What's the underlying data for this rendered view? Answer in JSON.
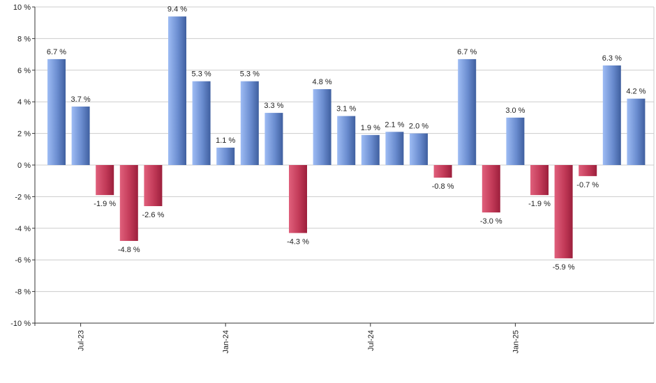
{
  "chart_data": {
    "type": "bar",
    "title": "",
    "xlabel": "",
    "ylabel": "",
    "ylim": [
      -10,
      10
    ],
    "yticks": [
      10,
      8,
      6,
      4,
      2,
      0,
      -2,
      -4,
      -6,
      -8,
      -10
    ],
    "ytick_labels": [
      "10 %",
      "8 %",
      "6 %",
      "4 %",
      "2 %",
      "0 %",
      "-2 %",
      "-4 %",
      "-6 %",
      "-8 %",
      "-10 %"
    ],
    "grid": true,
    "legend": "none",
    "values": [
      6.7,
      3.7,
      -1.9,
      -4.8,
      -2.6,
      9.4,
      5.3,
      1.1,
      5.3,
      3.3,
      -4.3,
      4.8,
      3.1,
      1.9,
      2.1,
      2.0,
      -0.8,
      6.7,
      -3.0,
      3.0,
      -1.9,
      -5.9,
      -0.7,
      6.3,
      4.2
    ],
    "data_labels": [
      "6.7 %",
      "3.7 %",
      "-1.9 %",
      "-4.8 %",
      "-2.6 %",
      "9.4 %",
      "5.3 %",
      "1.1 %",
      "5.3 %",
      "3.3 %",
      "-4.3 %",
      "4.8 %",
      "3.1 %",
      "1.9 %",
      "2.1 %",
      "2.0 %",
      "-0.8 %",
      "6.7 %",
      "-3.0 %",
      "3.0 %",
      "-1.9 %",
      "-5.9 %",
      "-0.7 %",
      "6.3 %",
      "4.2 %"
    ],
    "x_ticks": [
      {
        "label": "Jul-23",
        "index": 1
      },
      {
        "label": "Jan-24",
        "index": 7
      },
      {
        "label": "Jul-24",
        "index": 13
      },
      {
        "label": "Jan-25",
        "index": 19
      }
    ],
    "colors": {
      "positive_dark": "#3f5f9f",
      "positive_light": "#9ebcf4",
      "negative_dark": "#9c1f3c",
      "negative_light": "#e0607c",
      "grid": "#cccccc",
      "axis": "#333333"
    }
  }
}
